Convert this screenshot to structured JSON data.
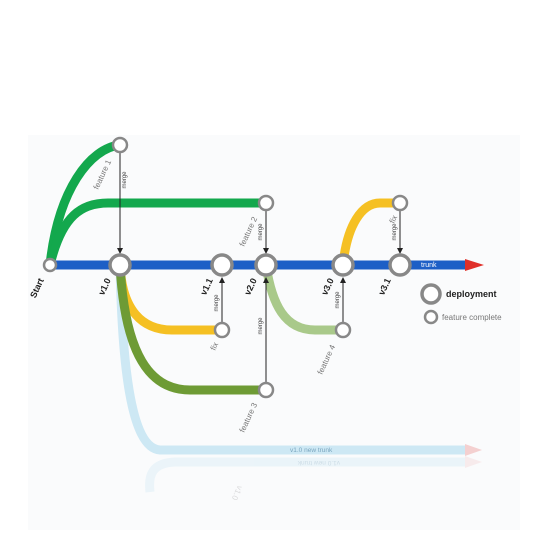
{
  "colors": {
    "trunk": "#1d5fc6",
    "arrow": "#e0302a",
    "feature1": "#13a84d",
    "feature2": "#13a84d",
    "fix": "#f5c023",
    "feature3": "#6e9b35",
    "feature4": "#a9c98a",
    "new_trunk": "#cde8f4",
    "node_stroke": "#888888"
  },
  "trunk_label": "trunk",
  "new_trunk_label": "v1.0 new trunk",
  "versions": {
    "start": "Start",
    "v1_0": "v1.0",
    "v1_1": "v1.1",
    "v2_0": "v2.0",
    "v3_0": "v3.0",
    "v3_1": "v3.1"
  },
  "branches": {
    "feature1": "feature 1",
    "feature2": "feature 2",
    "feature3": "feature 3",
    "feature4": "feature 4",
    "fix1": "fix",
    "fix2": "fix"
  },
  "merge_label": "merge",
  "legend": {
    "deployment": "deployment",
    "feature_complete": "feature complete"
  }
}
